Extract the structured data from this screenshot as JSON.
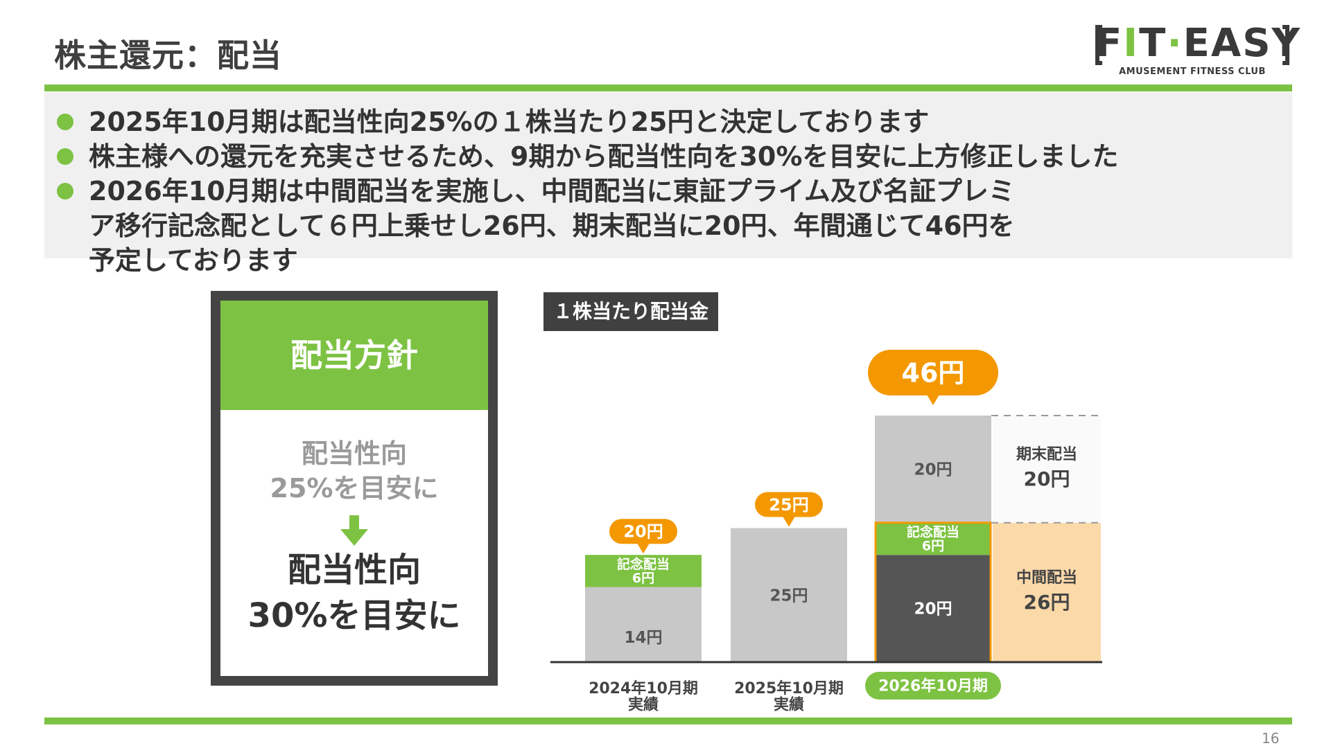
{
  "page": {
    "title": "株主還元：配当",
    "page_number": "16"
  },
  "logo": {
    "brand": "FIT-EASY",
    "tagline": "AMUSEMENT FITNESS CLUB"
  },
  "bullets": [
    {
      "text": "2025年10月期は配当性向25%の１株当たり25円と決定しております"
    },
    {
      "text": "株主様への還元を充実させるため、9期から配当性向を30%を目安に上方修正しました"
    },
    {
      "text": "2026年10月期は中間配当を実施し、中間配当に東証プライム及び名証プレミア移行記念配として６円上乗せし26円、期末配当に20円、年間通じて46円を予定しております"
    }
  ],
  "policy": {
    "heading": "配当方針",
    "before_line1": "配当性向",
    "before_line2": "25%を目安に",
    "after_line1": "配当性向",
    "after_line2": "30%を目安に"
  },
  "chart_label": "１株当たり配当金",
  "colors": {
    "green": "#7dc242",
    "gray_bar": "#c8c8c8",
    "dark_bar": "#555555",
    "orange": "#f39800",
    "interim_bg": "#fbd9a9",
    "frame": "#444444"
  },
  "chart_data": {
    "type": "bar",
    "stacked": true,
    "categories": [
      "2024年10月期\n実績",
      "2025年10月期\n実績",
      "2026年10月期"
    ],
    "bars": [
      {
        "category": "2024年10月期 実績",
        "segments": [
          {
            "label": "14円",
            "value": 14,
            "kind": "regular"
          },
          {
            "label": "記念配当\n6円",
            "value": 6,
            "kind": "commemorative"
          }
        ],
        "total_label": "20円"
      },
      {
        "category": "2025年10月期 実績",
        "segments": [
          {
            "label": "25円",
            "value": 25,
            "kind": "regular"
          }
        ],
        "total_label": "25円"
      },
      {
        "category": "2026年10月期",
        "segments": [
          {
            "label": "20円",
            "value": 20,
            "kind": "interim_regular"
          },
          {
            "label": "記念配当\n6円",
            "value": 6,
            "kind": "commemorative"
          },
          {
            "label": "20円",
            "value": 20,
            "kind": "year_end"
          }
        ],
        "total_label": "46円",
        "highlight": true
      }
    ],
    "side_annotations": [
      {
        "label": "期末配当",
        "value_label": "20円"
      },
      {
        "label": "中間配当",
        "value_label": "26円"
      }
    ],
    "ylim": [
      0,
      46
    ]
  }
}
